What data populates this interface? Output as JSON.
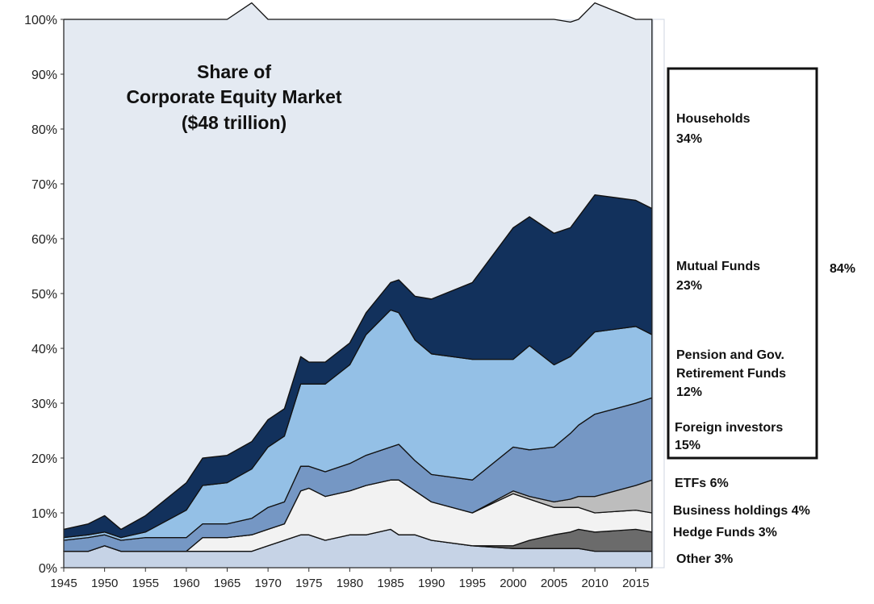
{
  "chart_data": {
    "type": "area",
    "title_lines": [
      "Share of",
      "Corporate Equity Market",
      "($48 trillion)"
    ],
    "xlabel": "",
    "ylabel": "",
    "xlim": [
      1945,
      2017
    ],
    "ylim": [
      0,
      100
    ],
    "x_ticks": [
      1945,
      1950,
      1955,
      1960,
      1965,
      1970,
      1975,
      1980,
      1985,
      1990,
      1995,
      2000,
      2005,
      2010,
      2015
    ],
    "y_ticks": [
      "0%",
      "10%",
      "20%",
      "30%",
      "40%",
      "50%",
      "60%",
      "70%",
      "80%",
      "90%",
      "100%"
    ],
    "x": [
      1945,
      1948,
      1950,
      1952,
      1955,
      1960,
      1962,
      1965,
      1968,
      1970,
      1972,
      1974,
      1975,
      1977,
      1980,
      1982,
      1985,
      1986,
      1988,
      1990,
      1995,
      2000,
      2002,
      2005,
      2007,
      2008,
      2010,
      2015,
      2017
    ],
    "stack_order_bottom_to_top": [
      "Other",
      "Hedge Funds",
      "Business holdings",
      "ETFs",
      "Foreign investors",
      "Pension and Gov. Retirement Funds",
      "Mutual Funds",
      "Households"
    ],
    "series": [
      {
        "name": "Other",
        "color": "#c6d3e6",
        "values": [
          3,
          3,
          4,
          3,
          3,
          3,
          3,
          3,
          3,
          4,
          5,
          6,
          6,
          5,
          6,
          6,
          7,
          6,
          6,
          5,
          4,
          3.5,
          3.5,
          3.5,
          3.5,
          3.5,
          3,
          3,
          3
        ]
      },
      {
        "name": "Hedge Funds",
        "color": "#6b6b6b",
        "values": [
          0,
          0,
          0,
          0,
          0,
          0,
          0,
          0,
          0,
          0,
          0,
          0,
          0,
          0,
          0,
          0,
          0,
          0,
          0,
          0,
          0,
          0.5,
          1.5,
          2.5,
          3,
          3.5,
          3.5,
          4,
          3.5
        ]
      },
      {
        "name": "Business holdings",
        "color": "#f2f2f2",
        "values": [
          0,
          0,
          0,
          0,
          0,
          0,
          2.5,
          2.5,
          3,
          3,
          3,
          8,
          8.5,
          8,
          8,
          9,
          9,
          10,
          8,
          7,
          6,
          9.5,
          7.5,
          5,
          4.5,
          4,
          3.5,
          3.5,
          3.5
        ]
      },
      {
        "name": "ETFs",
        "color": "#bdbdbd",
        "values": [
          0,
          0,
          0,
          0,
          0,
          0,
          0,
          0,
          0,
          0,
          0,
          0,
          0,
          0,
          0,
          0,
          0,
          0,
          0,
          0,
          0,
          0.5,
          0.5,
          1,
          1.5,
          2,
          3,
          4.5,
          6
        ]
      },
      {
        "name": "Foreign investors",
        "color": "#7597c4",
        "values": [
          2,
          2.5,
          2,
          2,
          2.5,
          2.5,
          2.5,
          2.5,
          3,
          4,
          4,
          4.5,
          4,
          4.5,
          5,
          5.5,
          6,
          6.5,
          5.5,
          5,
          6,
          8,
          8.5,
          10,
          12,
          13,
          15,
          15,
          15
        ]
      },
      {
        "name": "Pension and Gov. Retirement Funds",
        "color": "#94c0e6",
        "values": [
          0.5,
          0.5,
          0.5,
          0.5,
          1,
          5,
          7,
          7.5,
          9,
          11,
          12,
          15,
          15,
          16,
          18,
          22,
          25,
          24,
          22,
          22,
          22,
          16,
          19,
          15,
          14,
          14,
          15,
          14,
          11.5
        ]
      },
      {
        "name": "Mutual Funds",
        "color": "#12315c",
        "values": [
          1.5,
          2,
          3,
          1.5,
          3,
          5,
          5,
          5,
          5,
          5,
          5,
          5,
          4,
          4,
          4,
          4,
          5,
          6,
          8,
          10,
          14,
          24,
          23.5,
          24,
          23.5,
          24,
          25,
          23,
          23
        ]
      },
      {
        "name": "Households",
        "color": "#e4eaf2",
        "values": [
          93,
          92,
          90.5,
          93,
          90.5,
          84.5,
          80,
          79.5,
          80,
          73,
          71,
          61.5,
          62.5,
          62.5,
          59,
          53.5,
          48,
          47.5,
          50.5,
          51,
          48,
          38,
          36,
          39,
          37.5,
          36,
          35,
          33,
          34.5
        ]
      }
    ],
    "legend": [
      {
        "label_lines": [
          "Households",
          "34%"
        ]
      },
      {
        "label_lines": [
          "Mutual Funds",
          "23%"
        ]
      },
      {
        "label_lines": [
          "Pension and Gov.",
          "Retirement Funds",
          "12%"
        ]
      },
      {
        "label_lines": [
          "Foreign investors",
          "15%"
        ]
      },
      {
        "label_lines": [
          "ETFs 6%"
        ]
      },
      {
        "label_lines": [
          "Business holdings 4%"
        ]
      },
      {
        "label_lines": [
          "Hedge Funds 3%"
        ]
      },
      {
        "label_lines": [
          "Other 3%"
        ]
      }
    ],
    "bracket_total": "84%",
    "bracket_covers": [
      "Households",
      "Mutual Funds",
      "Pension and Gov. Retirement Funds",
      "Foreign investors"
    ]
  }
}
